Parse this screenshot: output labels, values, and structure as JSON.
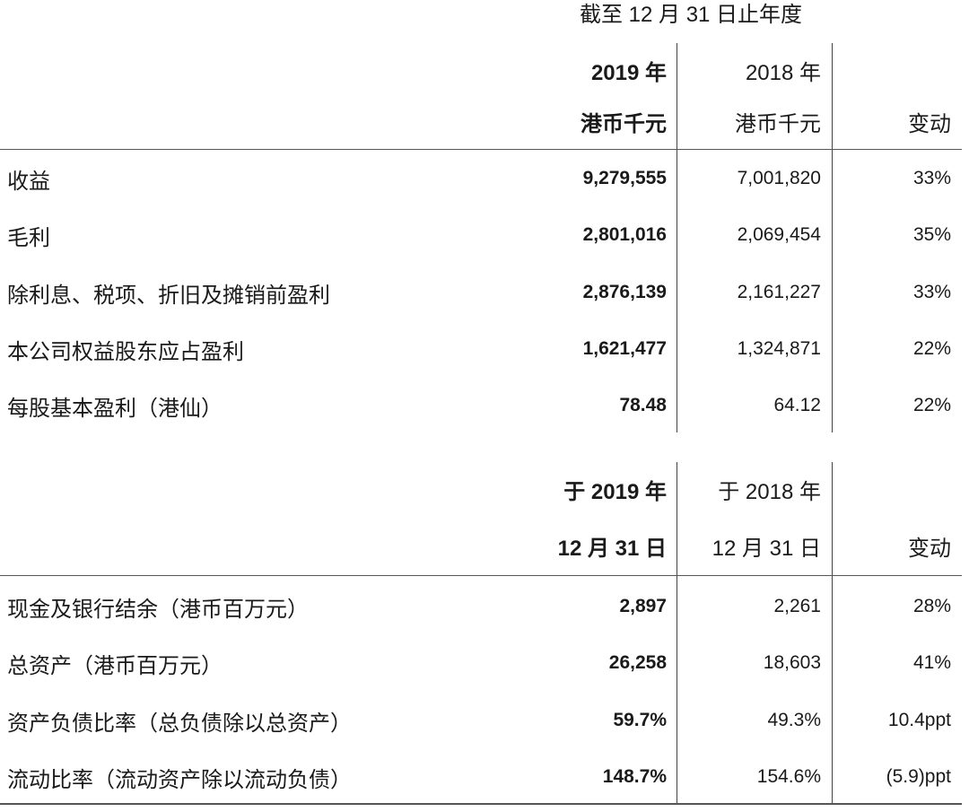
{
  "period_caption": "截至 12 月 31 日止年度",
  "table1": {
    "header": {
      "col1_line1": "2019 年",
      "col1_line2": "港币千元",
      "col2_line1": "2018 年",
      "col2_line2": "港币千元",
      "col3_line2": "变动"
    },
    "rows": [
      {
        "label": "收益",
        "y2019": "9,279,555",
        "y2018": "7,001,820",
        "change": "33%"
      },
      {
        "label": "毛利",
        "y2019": "2,801,016",
        "y2018": "2,069,454",
        "change": "35%"
      },
      {
        "label": "除利息、税项、折旧及摊销前盈利",
        "y2019": "2,876,139",
        "y2018": "2,161,227",
        "change": "33%"
      },
      {
        "label": "本公司权益股东应占盈利",
        "y2019": "1,621,477",
        "y2018": "1,324,871",
        "change": "22%"
      },
      {
        "label": "每股基本盈利（港仙）",
        "y2019": "78.48",
        "y2018": "64.12",
        "change": "22%"
      }
    ]
  },
  "table2": {
    "header": {
      "col1_line1": "于 2019 年",
      "col1_line2": "12 月 31 日",
      "col2_line1": "于 2018 年",
      "col2_line2": "12 月 31 日",
      "col3_line2": "变动"
    },
    "rows": [
      {
        "label": "现金及银行结余（港币百万元）",
        "y2019": "2,897",
        "y2018": "2,261",
        "change": "28%"
      },
      {
        "label": "总资产（港币百万元）",
        "y2019": "26,258",
        "y2018": "18,603",
        "change": "41%"
      },
      {
        "label": "资产负债比率（总负债除以总资产）",
        "y2019": "59.7%",
        "y2018": "49.3%",
        "change": "10.4ppt"
      },
      {
        "label": "流动比率（流动资产除以流动负债）",
        "y2019": "148.7%",
        "y2018": "154.6%",
        "change": "(5.9)ppt"
      }
    ]
  }
}
